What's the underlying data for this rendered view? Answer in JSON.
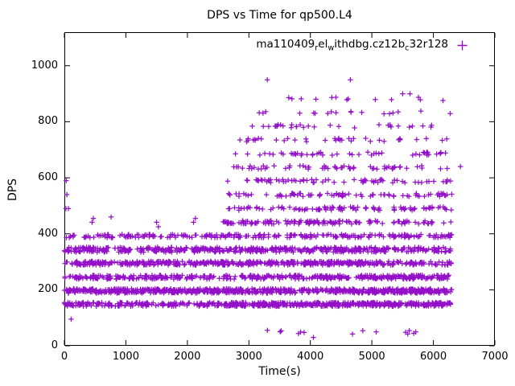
{
  "chart_data": {
    "type": "scatter",
    "title": "DPS vs Time for qp500.L4",
    "xlabel": "Time(s)",
    "ylabel": "DPS",
    "xlim": [
      0,
      7000
    ],
    "ylim": [
      0,
      1120
    ],
    "xticks": [
      "0",
      "1000",
      "2000",
      "3000",
      "4000",
      "5000",
      "6000",
      "7000"
    ],
    "xtick_values": [
      0,
      1000,
      2000,
      3000,
      4000,
      5000,
      6000,
      7000
    ],
    "yticks": [
      "0",
      "200",
      "400",
      "600",
      "800",
      "1000"
    ],
    "ytick_values": [
      0,
      200,
      400,
      600,
      800,
      1000
    ],
    "grid": false,
    "legend_position": "top-right-inside",
    "marker": "plus",
    "marker_color": "#9410c8",
    "axis_color": "#000000",
    "background_color": "#ffffff",
    "legend_parts": [
      {
        "text": "ma110409",
        "sub": false
      },
      {
        "text": "r",
        "sub": true
      },
      {
        "text": "el",
        "sub": false
      },
      {
        "text": "w",
        "sub": true
      },
      {
        "text": "ithdbg.cz12b",
        "sub": false
      },
      {
        "text": "c",
        "sub": true
      },
      {
        "text": "32r128",
        "sub": false
      }
    ],
    "bands": [
      {
        "dps": 148,
        "t0": 0,
        "t1": 2600,
        "count": 170,
        "jitter": 7
      },
      {
        "dps": 148,
        "t0": 2600,
        "t1": 6300,
        "count": 430,
        "jitter": 7
      },
      {
        "dps": 196,
        "t0": 0,
        "t1": 6300,
        "count": 700,
        "jitter": 8
      },
      {
        "dps": 245,
        "t0": 0,
        "t1": 6300,
        "count": 430,
        "jitter": 7
      },
      {
        "dps": 295,
        "t0": 0,
        "t1": 6300,
        "count": 500,
        "jitter": 7
      },
      {
        "dps": 343,
        "t0": 0,
        "t1": 6300,
        "count": 470,
        "jitter": 9
      },
      {
        "dps": 392,
        "t0": 0,
        "t1": 6300,
        "count": 240,
        "jitter": 6
      },
      {
        "dps": 441,
        "t0": 2580,
        "t1": 6300,
        "count": 130,
        "jitter": 6
      },
      {
        "dps": 490,
        "t0": 2580,
        "t1": 6300,
        "count": 95,
        "jitter": 6
      },
      {
        "dps": 539,
        "t0": 2650,
        "t1": 6300,
        "count": 80,
        "jitter": 6
      },
      {
        "dps": 588,
        "t0": 2650,
        "t1": 6300,
        "count": 70,
        "jitter": 6
      },
      {
        "dps": 637,
        "t0": 2750,
        "t1": 6300,
        "count": 60,
        "jitter": 6
      },
      {
        "dps": 686,
        "t0": 2750,
        "t1": 6300,
        "count": 50,
        "jitter": 6
      },
      {
        "dps": 735,
        "t0": 2850,
        "t1": 6300,
        "count": 38,
        "jitter": 6
      },
      {
        "dps": 784,
        "t0": 2850,
        "t1": 6300,
        "count": 32,
        "jitter": 6
      },
      {
        "dps": 833,
        "t0": 3050,
        "t1": 6300,
        "count": 18,
        "jitter": 6
      },
      {
        "dps": 882,
        "t0": 3300,
        "t1": 6300,
        "count": 11,
        "jitter": 6
      },
      {
        "dps": 49,
        "t0": 3200,
        "t1": 6300,
        "count": 14,
        "jitter": 8
      }
    ],
    "points": [
      {
        "t": 25,
        "dps": 490
      },
      {
        "t": 40,
        "dps": 540
      },
      {
        "t": 30,
        "dps": 590
      },
      {
        "t": 65,
        "dps": 490
      },
      {
        "t": 110,
        "dps": 95
      },
      {
        "t": 450,
        "dps": 441
      },
      {
        "t": 470,
        "dps": 455
      },
      {
        "t": 760,
        "dps": 460
      },
      {
        "t": 1500,
        "dps": 441
      },
      {
        "t": 1530,
        "dps": 425
      },
      {
        "t": 2100,
        "dps": 441
      },
      {
        "t": 2130,
        "dps": 455
      },
      {
        "t": 3300,
        "dps": 950
      },
      {
        "t": 4650,
        "dps": 950
      },
      {
        "t": 3700,
        "dps": 882
      },
      {
        "t": 3850,
        "dps": 882
      },
      {
        "t": 5500,
        "dps": 900
      },
      {
        "t": 5620,
        "dps": 900
      },
      {
        "t": 4050,
        "dps": 30
      },
      {
        "t": 6440,
        "dps": 640
      }
    ]
  }
}
